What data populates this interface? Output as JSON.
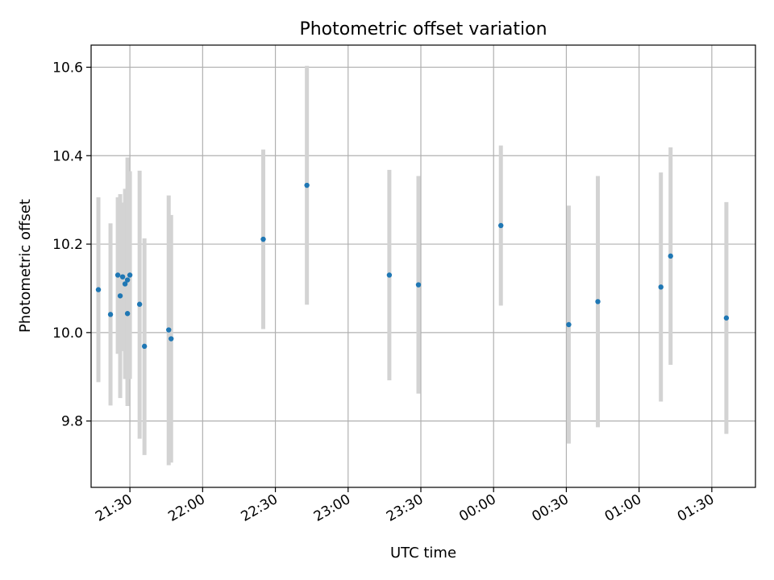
{
  "chart_data": {
    "type": "scatter",
    "title": "Photometric offset variation",
    "xlabel": "UTC time",
    "ylabel": "Photometric offset",
    "x_ticks": [
      "21:30",
      "22:00",
      "22:30",
      "23:00",
      "23:30",
      "00:00",
      "00:30",
      "01:00",
      "01:30"
    ],
    "y_ticks": [
      "9.8",
      "10.0",
      "10.2",
      "10.4",
      "10.6"
    ],
    "xlim": [
      "21:14",
      "01:48"
    ],
    "ylim": [
      9.65,
      10.65
    ],
    "grid": true,
    "marker_color": "#1f77b4",
    "errorbar_color": "#d3d3d3",
    "points": [
      {
        "t": "21:17",
        "y": 10.097,
        "lo": 9.888,
        "hi": 10.306
      },
      {
        "t": "21:22",
        "y": 10.041,
        "lo": 9.835,
        "hi": 10.247
      },
      {
        "t": "21:25",
        "y": 10.13,
        "lo": 9.952,
        "hi": 10.306
      },
      {
        "t": "21:26",
        "y": 10.083,
        "lo": 9.852,
        "hi": 10.313
      },
      {
        "t": "21:27",
        "y": 10.126,
        "lo": 9.958,
        "hi": 10.294
      },
      {
        "t": "21:28",
        "y": 10.11,
        "lo": 9.895,
        "hi": 10.325
      },
      {
        "t": "21:29",
        "y": 10.119,
        "lo": 9.842,
        "hi": 10.396
      },
      {
        "t": "21:29",
        "y": 10.043,
        "lo": 9.834,
        "hi": 10.252
      },
      {
        "t": "21:30",
        "y": 10.13,
        "lo": 9.895,
        "hi": 10.365
      },
      {
        "t": "21:34",
        "y": 10.064,
        "lo": 9.76,
        "hi": 10.366
      },
      {
        "t": "21:36",
        "y": 9.969,
        "lo": 9.723,
        "hi": 10.213
      },
      {
        "t": "21:46",
        "y": 10.006,
        "lo": 9.7,
        "hi": 10.31
      },
      {
        "t": "21:47",
        "y": 9.986,
        "lo": 9.706,
        "hi": 10.266
      },
      {
        "t": "22:25",
        "y": 10.211,
        "lo": 10.008,
        "hi": 10.414
      },
      {
        "t": "22:43",
        "y": 10.333,
        "lo": 10.063,
        "hi": 10.603
      },
      {
        "t": "23:17",
        "y": 10.13,
        "lo": 9.892,
        "hi": 10.368
      },
      {
        "t": "23:29",
        "y": 10.108,
        "lo": 9.862,
        "hi": 10.354
      },
      {
        "t": "00:03",
        "y": 10.242,
        "lo": 10.061,
        "hi": 10.423
      },
      {
        "t": "00:31",
        "y": 10.018,
        "lo": 9.749,
        "hi": 10.287
      },
      {
        "t": "00:43",
        "y": 10.07,
        "lo": 9.786,
        "hi": 10.354
      },
      {
        "t": "01:09",
        "y": 10.103,
        "lo": 9.844,
        "hi": 10.362
      },
      {
        "t": "01:13",
        "y": 10.173,
        "lo": 9.927,
        "hi": 10.419
      },
      {
        "t": "01:36",
        "y": 10.033,
        "lo": 9.771,
        "hi": 10.295
      }
    ]
  }
}
